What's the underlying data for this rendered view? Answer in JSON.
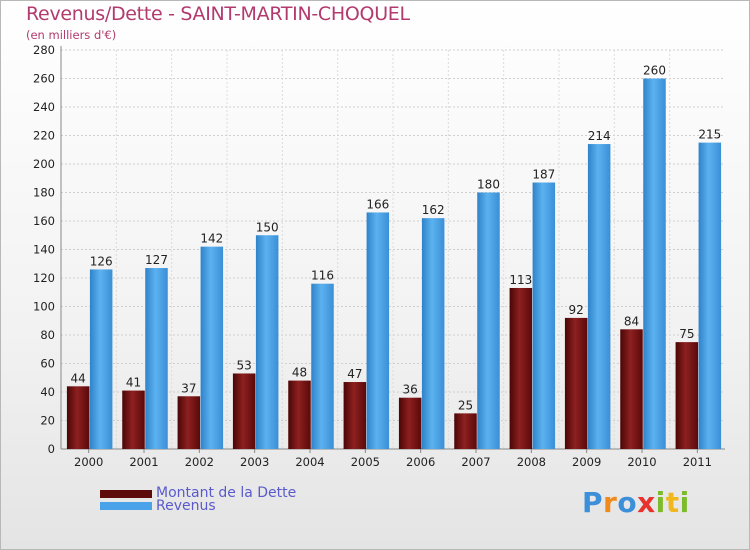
{
  "title": "Revenus/Dette - SAINT-MARTIN-CHOQUEL",
  "subtitle": "(en milliers d'€)",
  "chart_data": {
    "type": "bar",
    "title": "Revenus/Dette - SAINT-MARTIN-CHOQUEL",
    "ylabel": "(en milliers d'€)",
    "xlabel": "",
    "ylim": [
      0,
      280
    ],
    "yticks": [
      0,
      20,
      40,
      60,
      80,
      100,
      120,
      140,
      160,
      180,
      200,
      220,
      240,
      260,
      280
    ],
    "grid": true,
    "legend_position": "bottom-left",
    "categories": [
      "2000",
      "2001",
      "2002",
      "2003",
      "2004",
      "2005",
      "2006",
      "2007",
      "2008",
      "2009",
      "2010",
      "2011"
    ],
    "series": [
      {
        "name": "Montant de la Dette",
        "color": "#8b1a1a",
        "values": [
          44,
          41,
          37,
          53,
          48,
          47,
          36,
          25,
          113,
          92,
          84,
          75
        ]
      },
      {
        "name": "Revenus",
        "color": "#4aa3e8",
        "values": [
          126,
          127,
          142,
          150,
          116,
          166,
          162,
          180,
          187,
          214,
          260,
          215
        ]
      }
    ]
  },
  "legend": {
    "items": [
      {
        "label": "Montant de la Dette",
        "color": "#6b0f0f"
      },
      {
        "label": "Revenus",
        "color": "#4aa3e8"
      }
    ]
  },
  "logo": {
    "letters": [
      "P",
      "r",
      "o",
      "x",
      "i",
      "t",
      "i"
    ],
    "colors": [
      "#3c8fd8",
      "#f08a1c",
      "#3c8fd8",
      "#e8322e",
      "#7dbb2a",
      "#f0b81c",
      "#7dbb2a"
    ]
  }
}
